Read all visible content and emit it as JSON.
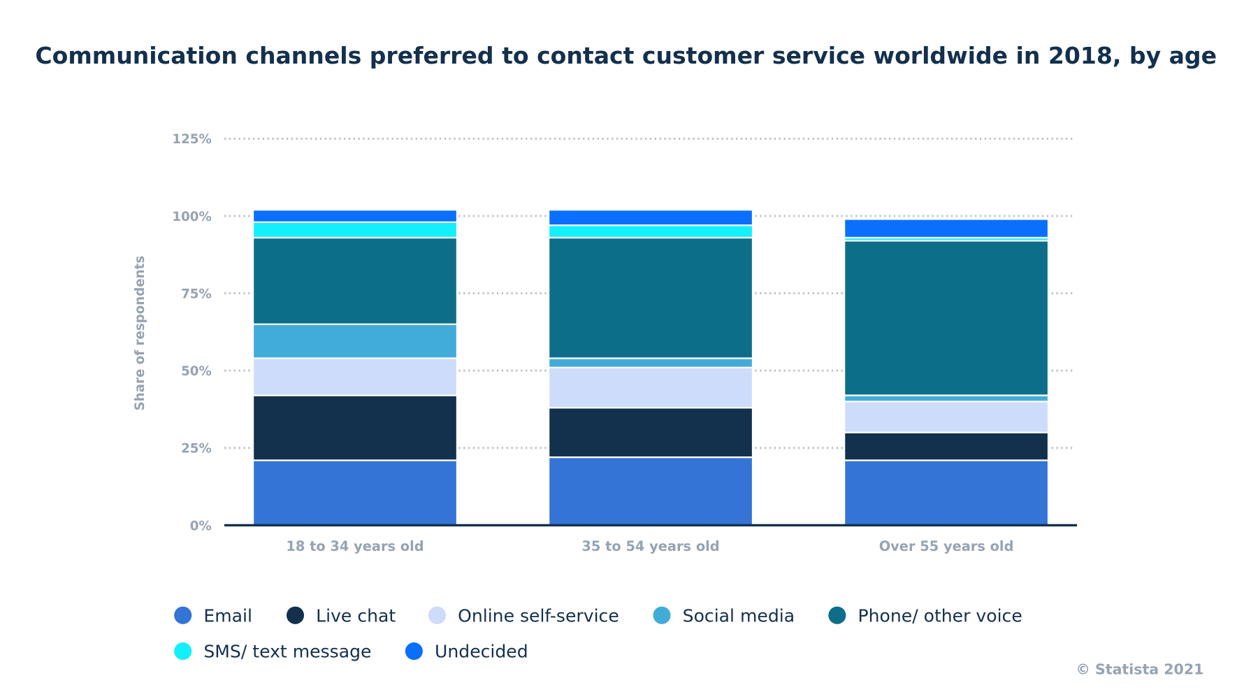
{
  "chart_data": {
    "type": "bar",
    "stacked": true,
    "title": "Communication channels preferred to contact customer service worldwide in 2018, by age",
    "xlabel": "",
    "ylabel": "Share of respondents",
    "ylim": [
      0,
      125
    ],
    "yticks": [
      0,
      25,
      50,
      75,
      100,
      125
    ],
    "ytick_labels": [
      "0%",
      "25%",
      "50%",
      "75%",
      "100%",
      "125%"
    ],
    "grid": true,
    "legend_position": "bottom",
    "categories": [
      "18 to 34 years old",
      "35 to 54 years old",
      "Over 55 years old"
    ],
    "series": [
      {
        "name": "Email",
        "color": "#3474d6",
        "values": [
          21,
          22,
          21
        ]
      },
      {
        "name": "Live chat",
        "color": "#13304d",
        "values": [
          21,
          16,
          9
        ]
      },
      {
        "name": "Online self-service",
        "color": "#cddcfb",
        "values": [
          12,
          13,
          10
        ]
      },
      {
        "name": "Social media",
        "color": "#42acd9",
        "values": [
          11,
          3,
          2
        ]
      },
      {
        "name": "Phone/ other voice",
        "color": "#0d6e8a",
        "values": [
          28,
          39,
          50
        ]
      },
      {
        "name": "SMS/ text message",
        "color": "#13f0fb",
        "values": [
          5,
          4,
          1
        ]
      },
      {
        "name": "Undecided",
        "color": "#0a6ffc",
        "values": [
          4,
          5,
          6
        ]
      }
    ]
  },
  "credit": "©  Statista 2021"
}
